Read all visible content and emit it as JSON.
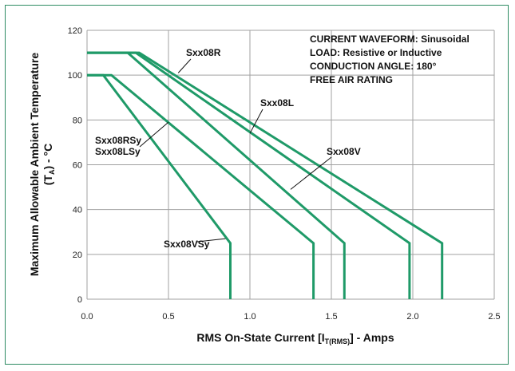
{
  "chart_data": {
    "type": "line",
    "xlabel_main": "RMS On-State Current [I",
    "xlabel_sub": "T(RMS)",
    "xlabel_tail": "] - Amps",
    "ylabel_line1": "Maximum Allowable Ambient Temperature",
    "ylabel_line2_pre": "(T",
    "ylabel_line2_sub": "A",
    "ylabel_line2_post": ") - °C",
    "xlim": [
      0,
      2.5
    ],
    "ylim": [
      0,
      120
    ],
    "x_ticks": [
      "0.0",
      "0.5",
      "1.0",
      "1.5",
      "2.0",
      "2.5"
    ],
    "y_ticks": [
      "0",
      "20",
      "40",
      "60",
      "80",
      "100",
      "120"
    ],
    "grid": true,
    "annotations": [
      "CURRENT WAVEFORM: Sinusoidal",
      "LOAD: Resistive or Inductive",
      "CONDUCTION ANGLE: 180°",
      "FREE AIR RATING"
    ],
    "series": [
      {
        "name": "Sxx08VSy",
        "x": [
          0,
          0.1,
          0.88,
          0.88
        ],
        "y": [
          100,
          100,
          25,
          0
        ]
      },
      {
        "name": "Sxx08RSy Sxx08LSy",
        "x": [
          0,
          0.15,
          1.39,
          1.39
        ],
        "y": [
          100,
          100,
          25,
          0
        ]
      },
      {
        "name": "Sxx08V",
        "x": [
          0,
          0.25,
          1.58,
          1.58
        ],
        "y": [
          110,
          110,
          25,
          0
        ]
      },
      {
        "name": "Sxx08L",
        "x": [
          0,
          0.3,
          1.98,
          1.98
        ],
        "y": [
          110,
          110,
          25,
          0
        ]
      },
      {
        "name": "Sxx08R",
        "x": [
          0,
          0.32,
          2.18,
          2.18
        ],
        "y": [
          110,
          110,
          25,
          0
        ]
      }
    ],
    "series_color": "#1f9a68",
    "grid_color": "#a0a0a0"
  }
}
